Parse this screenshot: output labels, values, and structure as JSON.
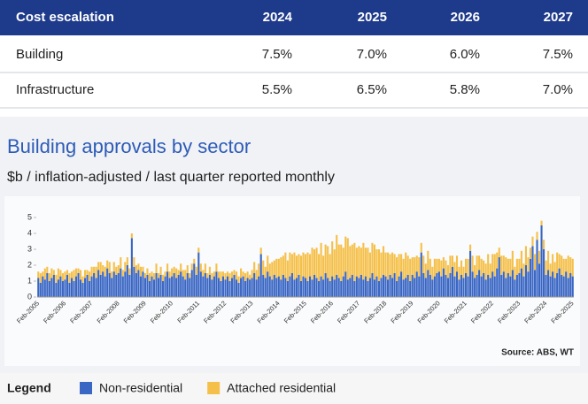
{
  "table": {
    "header": [
      "Cost escalation",
      "2024",
      "2025",
      "2026",
      "2027"
    ],
    "rows": [
      [
        "Building",
        "7.5%",
        "7.0%",
        "6.0%",
        "7.5%"
      ],
      [
        "Infrastructure",
        "5.5%",
        "6.5%",
        "5.8%",
        "7.0%"
      ]
    ]
  },
  "chart_data": {
    "type": "bar",
    "stacked": true,
    "title": "Building approvals by sector",
    "subtitle": "$b / inflation-adjusted / last quarter reported monthly",
    "source": "Source: ABS, WT",
    "legend_title": "Legend",
    "ylim": [
      0,
      5
    ],
    "yticks": [
      0,
      1,
      2,
      3,
      4,
      5
    ],
    "categories": [
      "Feb-2005",
      null,
      null,
      null,
      null,
      null,
      null,
      null,
      null,
      null,
      null,
      null,
      "Feb-2006",
      null,
      null,
      null,
      null,
      null,
      null,
      null,
      null,
      null,
      null,
      null,
      "Feb-2007",
      null,
      null,
      null,
      null,
      null,
      null,
      null,
      null,
      null,
      null,
      null,
      "Feb-2008",
      null,
      null,
      null,
      null,
      null,
      null,
      null,
      null,
      null,
      null,
      null,
      "Feb-2009",
      null,
      null,
      null,
      null,
      null,
      null,
      null,
      null,
      null,
      null,
      null,
      "Feb-2010",
      null,
      null,
      null,
      null,
      null,
      null,
      null,
      null,
      null,
      null,
      null,
      "Feb-2011",
      null,
      null,
      null,
      null,
      null,
      null,
      null,
      null,
      null,
      null,
      null,
      "Feb-2012",
      null,
      null,
      null,
      null,
      null,
      null,
      null,
      null,
      null,
      null,
      null,
      "Feb-2013",
      null,
      null,
      null,
      null,
      null,
      null,
      null,
      null,
      null,
      null,
      null,
      "Feb-2014",
      null,
      null,
      null,
      null,
      null,
      null,
      null,
      null,
      null,
      null,
      null,
      "Feb-2015",
      null,
      null,
      null,
      null,
      null,
      null,
      null,
      null,
      null,
      null,
      null,
      "Feb-2016",
      null,
      null,
      null,
      null,
      null,
      null,
      null,
      null,
      null,
      null,
      null,
      "Feb-2017",
      null,
      null,
      null,
      null,
      null,
      null,
      null,
      null,
      null,
      null,
      null,
      "Feb-2018",
      null,
      null,
      null,
      null,
      null,
      null,
      null,
      null,
      null,
      null,
      null,
      "Feb-2019",
      null,
      null,
      null,
      null,
      null,
      null,
      null,
      null,
      null,
      null,
      null,
      "Feb-2020",
      null,
      null,
      null,
      null,
      null,
      null,
      null,
      null,
      null,
      null,
      null,
      "Feb-2021",
      null,
      null,
      null,
      null,
      null,
      null,
      null,
      null,
      null,
      null,
      null,
      "Feb-2022",
      null,
      null,
      null,
      null,
      null,
      null,
      null,
      null,
      null,
      null,
      null,
      "Feb-2023",
      null,
      null,
      null,
      null,
      null,
      null,
      null,
      null,
      null,
      null,
      null,
      "Feb-2024",
      null,
      null,
      null,
      null,
      null,
      null,
      null,
      null,
      null,
      null,
      null,
      "Feb-2025"
    ],
    "series": [
      {
        "name": "Non-residential",
        "color": "#3a66c4",
        "values": [
          1.2,
          0.9,
          1.3,
          1.1,
          1.5,
          1.0,
          1.2,
          1.4,
          0.9,
          1.1,
          1.3,
          1.0,
          1.1,
          1.4,
          0.9,
          1.2,
          1.0,
          1.3,
          1.5,
          1.1,
          0.9,
          1.2,
          1.4,
          1.0,
          1.3,
          1.5,
          1.2,
          1.7,
          1.4,
          1.6,
          1.3,
          1.8,
          1.5,
          1.2,
          1.6,
          1.4,
          1.5,
          1.8,
          1.3,
          1.6,
          2.0,
          1.4,
          3.7,
          1.9,
          1.5,
          1.7,
          1.3,
          1.6,
          1.2,
          1.4,
          1.0,
          1.3,
          1.1,
          1.5,
          1.2,
          1.4,
          1.0,
          1.3,
          1.6,
          1.2,
          1.3,
          1.5,
          1.2,
          1.4,
          1.6,
          1.3,
          1.1,
          1.5,
          1.2,
          1.7,
          2.1,
          1.4,
          2.8,
          1.6,
          1.3,
          1.5,
          1.2,
          1.4,
          1.1,
          1.3,
          1.6,
          1.2,
          1.0,
          1.3,
          1.1,
          1.3,
          1.0,
          1.2,
          1.4,
          1.1,
          0.9,
          1.2,
          1.3,
          1.0,
          1.2,
          1.1,
          1.2,
          1.5,
          1.1,
          1.3,
          2.7,
          1.4,
          1.2,
          1.6,
          1.3,
          1.1,
          1.4,
          1.2,
          1.3,
          1.1,
          1.4,
          1.2,
          1.0,
          1.3,
          1.5,
          1.1,
          1.2,
          1.4,
          1.0,
          1.3,
          1.2,
          1.0,
          1.3,
          1.1,
          1.4,
          1.2,
          1.0,
          1.3,
          1.1,
          1.5,
          1.2,
          1.0,
          1.3,
          1.1,
          1.4,
          1.2,
          1.0,
          1.3,
          1.6,
          1.1,
          1.2,
          1.4,
          1.0,
          1.3,
          1.2,
          1.4,
          1.1,
          1.3,
          1.0,
          1.2,
          1.5,
          1.1,
          1.3,
          1.0,
          1.2,
          1.4,
          1.3,
          1.1,
          1.4,
          1.2,
          1.5,
          1.0,
          1.3,
          1.6,
          1.1,
          1.2,
          1.4,
          1.0,
          1.4,
          1.2,
          1.6,
          1.3,
          2.8,
          1.5,
          1.2,
          1.7,
          1.4,
          1.1,
          1.3,
          1.5,
          1.6,
          1.3,
          1.8,
          1.4,
          1.2,
          1.5,
          1.9,
          1.3,
          1.6,
          1.1,
          1.4,
          1.2,
          1.5,
          1.3,
          2.9,
          1.6,
          1.2,
          1.4,
          1.7,
          1.3,
          1.5,
          1.1,
          1.4,
          1.2,
          1.6,
          1.3,
          1.8,
          2.5,
          1.4,
          1.6,
          1.2,
          1.5,
          1.3,
          1.7,
          1.1,
          1.4,
          1.5,
          1.8,
          1.3,
          2.0,
          1.6,
          2.4,
          3.2,
          1.7,
          3.6,
          2.1,
          4.5,
          3.0,
          1.4,
          1.7,
          1.3,
          1.6,
          1.2,
          1.5,
          1.8,
          1.4,
          1.3,
          1.6,
          1.2,
          1.5,
          1.3
        ]
      },
      {
        "name": "Attached residential",
        "color": "#f5c04a",
        "values": [
          0.4,
          0.6,
          0.3,
          0.7,
          0.4,
          0.5,
          0.6,
          0.3,
          0.5,
          0.7,
          0.4,
          0.5,
          0.5,
          0.3,
          0.6,
          0.4,
          0.7,
          0.5,
          0.3,
          0.6,
          0.4,
          0.5,
          0.3,
          0.6,
          0.6,
          0.4,
          0.7,
          0.5,
          0.8,
          0.4,
          0.6,
          0.5,
          0.7,
          0.4,
          0.6,
          0.5,
          0.5,
          0.7,
          0.4,
          0.6,
          0.5,
          0.4,
          0.3,
          0.6,
          0.5,
          0.4,
          0.6,
          0.3,
          0.3,
          0.4,
          0.5,
          0.3,
          0.4,
          0.6,
          0.3,
          0.5,
          0.4,
          0.3,
          0.5,
          0.4,
          0.5,
          0.4,
          0.6,
          0.3,
          0.5,
          0.4,
          0.6,
          0.5,
          0.3,
          0.4,
          0.3,
          0.5,
          0.3,
          0.5,
          0.4,
          0.6,
          0.3,
          0.5,
          0.4,
          0.3,
          0.5,
          0.4,
          0.6,
          0.3,
          0.4,
          0.3,
          0.5,
          0.4,
          0.3,
          0.5,
          0.4,
          0.6,
          0.3,
          0.5,
          0.4,
          0.3,
          0.5,
          0.7,
          0.6,
          0.8,
          0.4,
          0.9,
          0.7,
          1.0,
          0.8,
          1.1,
          0.9,
          1.2,
          1.1,
          1.4,
          1.2,
          1.6,
          1.3,
          1.5,
          1.2,
          1.7,
          1.4,
          1.3,
          1.6,
          1.5,
          1.5,
          1.8,
          1.4,
          2.0,
          1.6,
          1.9,
          1.7,
          2.1,
          1.5,
          1.8,
          2.0,
          1.7,
          2.2,
          1.9,
          2.5,
          2.1,
          2.3,
          1.8,
          2.2,
          2.6,
          2.0,
          1.9,
          2.4,
          1.8,
          2.0,
          1.7,
          2.3,
          1.8,
          2.1,
          1.6,
          1.9,
          2.2,
          1.7,
          2.0,
          1.6,
          1.8,
          1.5,
          1.7,
          1.3,
          1.6,
          1.2,
          1.5,
          1.4,
          1.1,
          1.3,
          1.6,
          1.2,
          1.4,
          1.1,
          1.3,
          1.0,
          1.2,
          0.6,
          1.1,
          0.9,
          1.2,
          1.0,
          0.8,
          1.1,
          0.9,
          0.8,
          1.0,
          0.7,
          0.9,
          0.8,
          1.1,
          0.7,
          0.9,
          1.0,
          0.8,
          0.9,
          0.7,
          0.9,
          1.1,
          0.4,
          1.0,
          0.8,
          1.2,
          0.9,
          1.1,
          0.8,
          1.0,
          1.3,
          0.9,
          1.1,
          1.4,
          1.0,
          0.6,
          1.2,
          1.0,
          1.3,
          0.9,
          1.1,
          1.2,
          0.8,
          1.0,
          0.9,
          1.1,
          0.8,
          1.2,
          0.9,
          0.7,
          0.6,
          1.0,
          0.5,
          0.8,
          0.3,
          0.6,
          0.9,
          1.2,
          0.8,
          1.1,
          1.0,
          1.3,
          0.9,
          1.2,
          1.1,
          0.8,
          1.4,
          1.0,
          1.1
        ]
      }
    ]
  }
}
